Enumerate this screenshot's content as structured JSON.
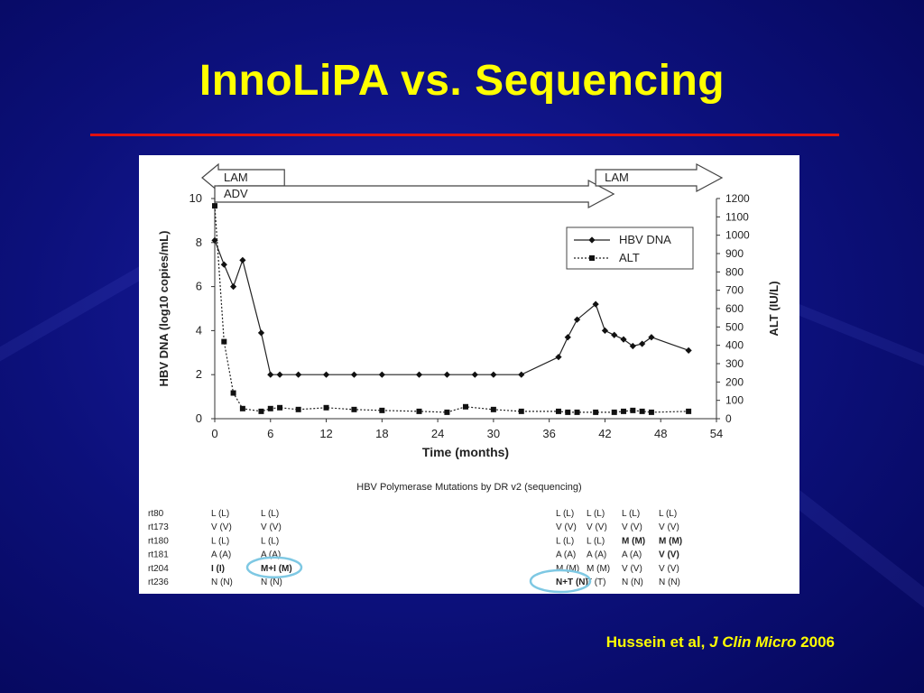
{
  "slide": {
    "title": "InnoLiPA vs. Sequencing",
    "citation": {
      "authors": "Hussein et al,",
      "journal": "J Clin Micro",
      "year": "2006"
    }
  },
  "colors": {
    "title": "#ffff00",
    "rule": "#e01010",
    "highlight_circle": "#7ec8e3"
  },
  "chart_data": {
    "type": "line",
    "xlabel": "Time (months)",
    "ylabel_left": "HBV DNA (log10 copies/mL)",
    "ylabel_right": "ALT (IU/L)",
    "xlim": [
      0,
      54
    ],
    "ylim_left": [
      0,
      10
    ],
    "ylim_right": [
      0,
      1200
    ],
    "x_ticks": [
      0,
      6,
      12,
      18,
      24,
      30,
      36,
      42,
      48,
      54
    ],
    "y_ticks_left": [
      0,
      2,
      4,
      6,
      8,
      10
    ],
    "y_ticks_right": [
      0,
      100,
      200,
      300,
      400,
      500,
      600,
      700,
      800,
      900,
      1000,
      1100,
      1200
    ],
    "legend_position": "top-right",
    "series": [
      {
        "name": "HBV DNA",
        "axis": "left",
        "style": "solid-diamond",
        "x": [
          0,
          1,
          2,
          3,
          5,
          6,
          7,
          9,
          12,
          15,
          18,
          22,
          25,
          28,
          30,
          33,
          37,
          38,
          39,
          41,
          42,
          43,
          44,
          45,
          46,
          47,
          51
        ],
        "y": [
          8.1,
          7.0,
          6.0,
          7.2,
          3.9,
          2.0,
          2.0,
          2.0,
          2.0,
          2.0,
          2.0,
          2.0,
          2.0,
          2.0,
          2.0,
          2.0,
          2.8,
          3.7,
          4.5,
          5.2,
          4.0,
          3.8,
          3.6,
          3.3,
          3.4,
          3.7,
          3.1
        ]
      },
      {
        "name": "ALT",
        "axis": "right",
        "style": "dotted-square",
        "x": [
          0,
          1,
          2,
          3,
          5,
          6,
          7,
          9,
          12,
          15,
          18,
          22,
          25,
          27,
          30,
          33,
          37,
          38,
          39,
          41,
          43,
          44,
          45,
          46,
          47,
          51
        ],
        "y": [
          1160,
          420,
          140,
          55,
          40,
          55,
          60,
          50,
          60,
          50,
          45,
          40,
          35,
          65,
          50,
          40,
          40,
          35,
          35,
          35,
          35,
          40,
          45,
          40,
          35,
          40
        ]
      }
    ],
    "treatment_bars": [
      {
        "label": "LAM",
        "x_start": 0,
        "x_end": 7.5,
        "direction": "left"
      },
      {
        "label": "ADV",
        "x_start": 0,
        "x_end": 41,
        "direction": "right"
      },
      {
        "label": "LAM",
        "x_start": 41,
        "x_end": 54,
        "direction": "right"
      }
    ]
  },
  "mutation_table": {
    "title": "HBV Polymerase Mutations by DR v2 (sequencing)",
    "row_labels": [
      "rt80",
      "rt173",
      "rt180",
      "rt181",
      "rt204",
      "rt236"
    ],
    "left_columns": [
      [
        "L (L)",
        "V (V)",
        "L (L)",
        "A (A)",
        "I (I)",
        "N (N)"
      ],
      [
        "L (L)",
        "V (V)",
        "L (L)",
        "A (A)",
        "M+I (M)",
        "N (N)"
      ]
    ],
    "right_columns": [
      [
        "L (L)",
        "V (V)",
        "L (L)",
        "A (A)",
        "M (M)",
        "N+T (N)"
      ],
      [
        "L (L)",
        "V (V)",
        "L (L)",
        "A (A)",
        "M (M)",
        "T (T)"
      ],
      [
        "L (L)",
        "V (V)",
        "M (M)",
        "A (A)",
        "V (V)",
        "N (N)"
      ],
      [
        "L (L)",
        "V (V)",
        "M (M)",
        "V (V)",
        "V (V)",
        "N (N)"
      ]
    ]
  }
}
